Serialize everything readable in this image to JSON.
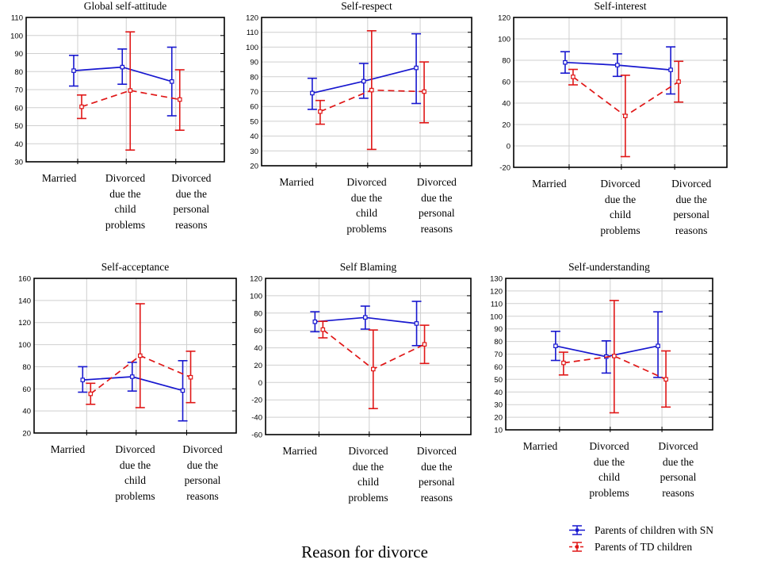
{
  "figure": {
    "xlabel": "Reason for divorce",
    "background": "#ffffff",
    "grid_color": "#cfcfcf",
    "axis_color": "#000000",
    "category_display_labels": [
      "Married",
      "Divorced\ndue the\nchild\nproblems",
      "Divorced\ndue the\npersonal\nreasons"
    ],
    "legend": [
      {
        "label": "Parents of children with SN",
        "color": "#1717cf",
        "style": "solid"
      },
      {
        "label": "Parents of TD children",
        "color": "#e01717",
        "style": "dashed"
      }
    ],
    "legend_position": "bottom-right"
  },
  "chart_data": [
    {
      "type": "line",
      "title": "Global self-attitude",
      "categories": [
        "Married",
        "Divorced due the child problems",
        "Divorced due the personal reasons"
      ],
      "ylim": [
        30,
        110
      ],
      "ytick_step": 10,
      "grid": true,
      "series": [
        {
          "name": "Parents of children with SN",
          "values": [
            80.5,
            82.5,
            74.5
          ],
          "err_low": [
            72,
            73,
            55.5
          ],
          "err_high": [
            89,
            92.5,
            93.5
          ]
        },
        {
          "name": "Parents of TD children",
          "values": [
            60.5,
            69.5,
            64.5
          ],
          "err_low": [
            54,
            36.5,
            47.5
          ],
          "err_high": [
            67,
            102,
            81
          ]
        }
      ]
    },
    {
      "type": "line",
      "title": "Self-respect",
      "categories": [
        "Married",
        "Divorced due the child problems",
        "Divorced due the personal reasons"
      ],
      "ylim": [
        20,
        120
      ],
      "ytick_step": 10,
      "grid": true,
      "series": [
        {
          "name": "Parents of children with SN",
          "values": [
            69,
            77,
            86
          ],
          "err_low": [
            58,
            65.5,
            62
          ],
          "err_high": [
            79,
            89,
            109
          ]
        },
        {
          "name": "Parents of TD children",
          "values": [
            56.5,
            71,
            70
          ],
          "err_low": [
            48,
            31,
            49
          ],
          "err_high": [
            64,
            111,
            90
          ]
        }
      ]
    },
    {
      "type": "line",
      "title": "Self-interest",
      "categories": [
        "Married",
        "Divorced due the child problems",
        "Divorced due the personal reasons"
      ],
      "ylim": [
        -20,
        120
      ],
      "ytick_step": 20,
      "grid": true,
      "series": [
        {
          "name": "Parents of children with SN",
          "values": [
            78,
            75.5,
            71
          ],
          "err_low": [
            68,
            65,
            48.5
          ],
          "err_high": [
            88,
            86,
            92.5
          ]
        },
        {
          "name": "Parents of TD children",
          "values": [
            64.5,
            28,
            60
          ],
          "err_low": [
            57,
            -10,
            41
          ],
          "err_high": [
            71.5,
            66,
            79
          ]
        }
      ]
    },
    {
      "type": "line",
      "title": "Self-acceptance",
      "categories": [
        "Married",
        "Divorced due the child problems",
        "Divorced due the personal reasons"
      ],
      "ylim": [
        20,
        160
      ],
      "ytick_step": 20,
      "grid": true,
      "series": [
        {
          "name": "Parents of children with SN",
          "values": [
            68,
            71,
            58.5
          ],
          "err_low": [
            57,
            58,
            31
          ],
          "err_high": [
            80,
            84,
            85.5
          ]
        },
        {
          "name": "Parents of TD children",
          "values": [
            55.5,
            90,
            70.5
          ],
          "err_low": [
            46,
            43,
            47.5
          ],
          "err_high": [
            65,
            137,
            94
          ]
        }
      ]
    },
    {
      "type": "line",
      "title": "Self Blaming",
      "categories": [
        "Married",
        "Divorced due the child problems",
        "Divorced due the personal reasons"
      ],
      "ylim": [
        -60,
        120
      ],
      "ytick_step": 20,
      "grid": true,
      "series": [
        {
          "name": "Parents of children with SN",
          "values": [
            70,
            75,
            68
          ],
          "err_low": [
            58.5,
            61.5,
            42.5
          ],
          "err_high": [
            81.5,
            88,
            93.5
          ]
        },
        {
          "name": "Parents of TD children",
          "values": [
            61,
            15.5,
            44
          ],
          "err_low": [
            51.5,
            -30,
            22
          ],
          "err_high": [
            70.5,
            60.5,
            66
          ]
        }
      ]
    },
    {
      "type": "line",
      "title": "Self-understanding",
      "categories": [
        "Married",
        "Divorced due the child problems",
        "Divorced due the personal reasons"
      ],
      "ylim": [
        10,
        130
      ],
      "ytick_step": 10,
      "grid": true,
      "series": [
        {
          "name": "Parents of children with SN",
          "values": [
            76.5,
            68,
            76.5
          ],
          "err_low": [
            65,
            55,
            51.5
          ],
          "err_high": [
            88,
            80.5,
            103.5
          ]
        },
        {
          "name": "Parents of TD children",
          "values": [
            63,
            68.5,
            50
          ],
          "err_low": [
            53.5,
            23.5,
            28
          ],
          "err_high": [
            71.5,
            112.5,
            72.5
          ]
        }
      ]
    }
  ]
}
